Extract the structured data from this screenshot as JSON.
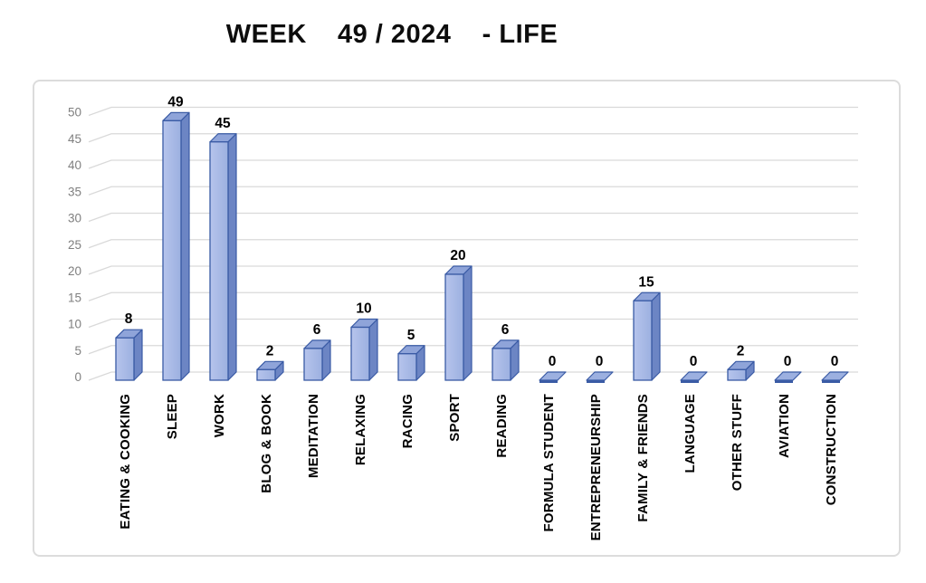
{
  "title": {
    "text": "WEEK    49 / 2024    - LIFE"
  },
  "chart_data": {
    "type": "bar",
    "style": "3d-column",
    "title": "WEEK 49 / 2024 - LIFE",
    "categories": [
      "EATING & COOKING",
      "SLEEP",
      "WORK",
      "BLOG & BOOK",
      "MEDITATION",
      "RELAXING",
      "RACING",
      "SPORT",
      "READING",
      "FORMULA STUDENT",
      "ENTREPRENEURSHIP",
      "FAMILY & FRIENDS",
      "LANGUAGE",
      "OTHER STUFF",
      "AVIATION",
      "CONSTRUCTION"
    ],
    "values": [
      8,
      49,
      45,
      2,
      6,
      10,
      5,
      20,
      6,
      0,
      0,
      15,
      0,
      2,
      0,
      0
    ],
    "data_labels": [
      8,
      49,
      45,
      2,
      6,
      10,
      5,
      20,
      6,
      0,
      0,
      15,
      0,
      2,
      0,
      0
    ],
    "xlabel": "",
    "ylabel": "",
    "ylim": [
      0,
      50
    ],
    "ytick_step": 5,
    "ytick_labels": [
      "0",
      "5",
      "10",
      "15",
      "20",
      "25",
      "30",
      "35",
      "40",
      "45",
      "50"
    ],
    "gridlines": true,
    "legend": "none",
    "colors": {
      "bar_front_light": "#b6c4ec",
      "bar_front_dark": "#9cb0e0",
      "bar_top": "#8fa4d9",
      "bar_side": "#6c85c4",
      "bar_edge": "#3a5ba5",
      "gridline": "#d9d9d9",
      "tick_label": "#7f7f7f",
      "category_label": "#000000",
      "value_label": "#000000",
      "chart_border": "#dcdcdc",
      "background": "#ffffff"
    }
  }
}
